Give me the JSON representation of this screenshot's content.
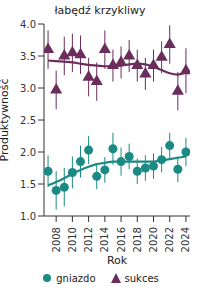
{
  "chart_data": {
    "type": "scatter",
    "title": "łabędź krzykliwy",
    "xlabel": "Rok",
    "ylabel": "Produktywność",
    "x": [
      2007,
      2008,
      2009,
      2010,
      2011,
      2012,
      2013,
      2014,
      2015,
      2016,
      2017,
      2018,
      2019,
      2020,
      2021,
      2022,
      2023,
      2024
    ],
    "xlim": [
      2006.5,
      2024.5
    ],
    "xticks": [
      2008,
      2010,
      2012,
      2014,
      2016,
      2018,
      2020,
      2022,
      2024
    ],
    "ylim": [
      1,
      4
    ],
    "yticks": [
      {
        "value": 1,
        "label": "1.0"
      },
      {
        "value": 1.5,
        "label": "1.5"
      },
      {
        "value": 2,
        "label": "2.0"
      },
      {
        "value": 2.5,
        "label": "2.5"
      },
      {
        "value": 3,
        "label": "3.0"
      },
      {
        "value": 3.5,
        "label": "3.5"
      },
      {
        "value": 4,
        "label": "4.0"
      }
    ],
    "grid": false,
    "legend": "bottom",
    "series": [
      {
        "name": "gniazdo",
        "color": "#1b8a84",
        "marker": "circle",
        "values": [
          1.7,
          1.4,
          1.45,
          1.68,
          1.85,
          2.03,
          1.62,
          1.72,
          2.05,
          1.85,
          1.93,
          1.7,
          1.75,
          1.78,
          1.88,
          2.1,
          1.73,
          2.0
        ],
        "errors": [
          0.25,
          0.3,
          0.3,
          0.25,
          0.25,
          0.22,
          0.2,
          0.2,
          0.25,
          0.22,
          0.2,
          0.2,
          0.2,
          0.2,
          0.2,
          0.2,
          0.2,
          0.22
        ],
        "trend": [
          1.48,
          1.53,
          1.59,
          1.66,
          1.72,
          1.77,
          1.81,
          1.83,
          1.85,
          1.85,
          1.85,
          1.85,
          1.85,
          1.85,
          1.87,
          1.89,
          1.91,
          1.93
        ]
      },
      {
        "name": "sukces",
        "color": "#6b2d5c",
        "marker": "triangle",
        "values": [
          3.6,
          2.97,
          3.5,
          3.55,
          3.52,
          3.17,
          3.1,
          3.6,
          3.35,
          3.4,
          3.5,
          3.35,
          3.22,
          3.35,
          3.48,
          3.68,
          2.95,
          3.27
        ],
        "errors": [
          0.3,
          0.3,
          0.3,
          0.3,
          0.3,
          0.3,
          0.3,
          0.3,
          0.25,
          0.25,
          0.25,
          0.25,
          0.25,
          0.25,
          0.25,
          0.3,
          0.3,
          0.35
        ],
        "trend": [
          3.43,
          3.42,
          3.41,
          3.4,
          3.38,
          3.36,
          3.35,
          3.34,
          3.34,
          3.35,
          3.37,
          3.38,
          3.37,
          3.33,
          3.28,
          3.23,
          3.21,
          3.25
        ]
      }
    ]
  }
}
